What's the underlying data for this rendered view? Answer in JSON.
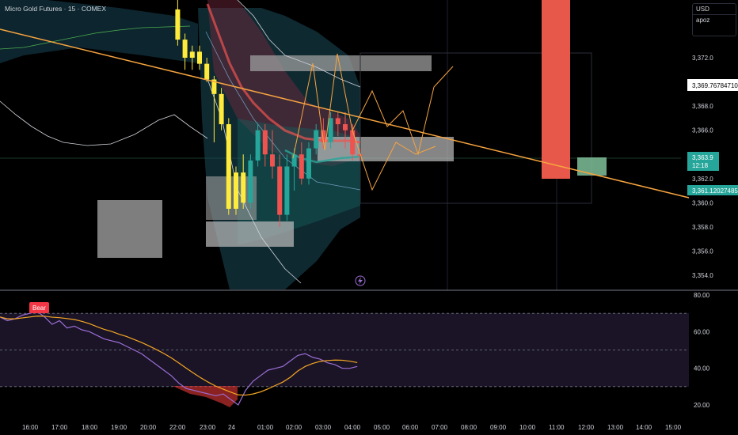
{
  "header": {
    "title": "Micro Gold Futures · 15 · COMEX"
  },
  "panel": {
    "currency": "USD",
    "user": "apoz"
  },
  "colors": {
    "up": "#26a69a",
    "down": "#ef5350",
    "wick_yellow": "#ffeb3b",
    "trend": "#f7a440",
    "rsi": "#9c6dd6",
    "rsi_ma": "#f5a623"
  },
  "chart_data": [
    {
      "type": "candlestick",
      "title": "Micro Gold Futures · 15 · COMEX",
      "ylim": [
        3352.5,
        3378
      ],
      "y_ticks": [
        "3,372.0",
        "3,370.0",
        "3,368.0",
        "3,366.0",
        "3,364.0",
        "3,362.0",
        "3,360.0",
        "3,358.0",
        "3,356.0",
        "3,354.0"
      ],
      "x_ticks": [
        "16:00",
        "17:00",
        "18:00",
        "19:00",
        "20:00",
        "22:00",
        "23:00",
        "24",
        "01:00",
        "02:00",
        "03:00",
        "04:00",
        "05:00",
        "06:00",
        "07:00",
        "08:00",
        "09:00",
        "10:00",
        "11:00",
        "12:00",
        "13:00",
        "14:00",
        "15:00"
      ],
      "price_labels": {
        "line_level": "3,369.76784710",
        "last_price": "3,363.9",
        "countdown": "12:18",
        "trend_price": "3,361.12027485"
      },
      "candles": [
        {
          "t": "22:00",
          "o": 3376,
          "h": 3378,
          "l": 3373,
          "c": 3373.5
        },
        {
          "t": "22:15",
          "o": 3373.5,
          "h": 3374,
          "l": 3371,
          "c": 3372
        },
        {
          "t": "22:30",
          "o": 3372,
          "h": 3373,
          "l": 3371,
          "c": 3372.5
        },
        {
          "t": "22:45",
          "o": 3372.5,
          "h": 3373,
          "l": 3371,
          "c": 3371.5
        },
        {
          "t": "23:00",
          "o": 3371.5,
          "h": 3372,
          "l": 3370,
          "c": 3370.2
        },
        {
          "t": "23:15",
          "o": 3370.2,
          "h": 3370.5,
          "l": 3365,
          "c": 3369
        },
        {
          "t": "23:30",
          "o": 3369,
          "h": 3369.5,
          "l": 3366,
          "c": 3366.5
        },
        {
          "t": "23:45",
          "o": 3366.5,
          "h": 3367,
          "l": 3359,
          "c": 3359.5
        },
        {
          "t": "24:00",
          "o": 3359.5,
          "h": 3363,
          "l": 3359,
          "c": 3362.5
        },
        {
          "t": "00:15",
          "o": 3362.5,
          "h": 3364,
          "l": 3359.5,
          "c": 3360
        },
        {
          "t": "00:30",
          "o": 3360,
          "h": 3364,
          "l": 3359.5,
          "c": 3363.5
        },
        {
          "t": "00:45",
          "o": 3363.5,
          "h": 3366.5,
          "l": 3363,
          "c": 3366
        },
        {
          "t": "01:00",
          "o": 3366,
          "h": 3366.5,
          "l": 3363,
          "c": 3364
        },
        {
          "t": "01:15",
          "o": 3364,
          "h": 3366,
          "l": 3362,
          "c": 3363
        },
        {
          "t": "01:30",
          "o": 3363,
          "h": 3364,
          "l": 3358,
          "c": 3359
        },
        {
          "t": "01:45",
          "o": 3359,
          "h": 3364,
          "l": 3358.5,
          "c": 3363
        },
        {
          "t": "02:00",
          "o": 3363,
          "h": 3364.5,
          "l": 3361,
          "c": 3364
        },
        {
          "t": "02:15",
          "o": 3364,
          "h": 3365,
          "l": 3361.5,
          "c": 3362
        },
        {
          "t": "02:30",
          "o": 3362,
          "h": 3365,
          "l": 3361.5,
          "c": 3364.5
        },
        {
          "t": "02:45",
          "o": 3364.5,
          "h": 3366.5,
          "l": 3364,
          "c": 3366
        },
        {
          "t": "03:00",
          "o": 3366,
          "h": 3367,
          "l": 3364.5,
          "c": 3365
        },
        {
          "t": "03:15",
          "o": 3365,
          "h": 3367.5,
          "l": 3364.5,
          "c": 3367
        },
        {
          "t": "03:30",
          "o": 3367,
          "h": 3367.5,
          "l": 3365.5,
          "c": 3366.5
        },
        {
          "t": "03:45",
          "o": 3366.5,
          "h": 3367.5,
          "l": 3364.5,
          "c": 3366
        },
        {
          "t": "04:00",
          "o": 3366,
          "h": 3366.5,
          "l": 3363.5,
          "c": 3364
        },
        {
          "t": "04:15",
          "o": 3364,
          "h": 3364.5,
          "l": 3363.5,
          "c": 3363.9
        }
      ],
      "rsi": {
        "ylim": [
          15,
          85
        ],
        "y_ticks": [
          "80.00",
          "60.00",
          "40.00",
          "20.00"
        ],
        "bands": [
          70,
          50,
          30
        ],
        "signal_label": "Bear",
        "values": [
          68,
          66,
          67,
          69,
          70,
          71,
          68,
          64,
          66,
          62,
          63,
          61,
          60,
          58,
          56,
          55,
          54,
          52,
          50,
          48,
          45,
          42,
          39,
          36,
          32,
          29,
          28,
          27,
          26,
          25,
          26,
          23,
          20,
          28,
          33,
          36,
          39,
          40,
          41,
          44,
          47,
          48,
          46,
          45,
          43,
          42,
          40,
          40,
          41
        ]
      }
    }
  ]
}
